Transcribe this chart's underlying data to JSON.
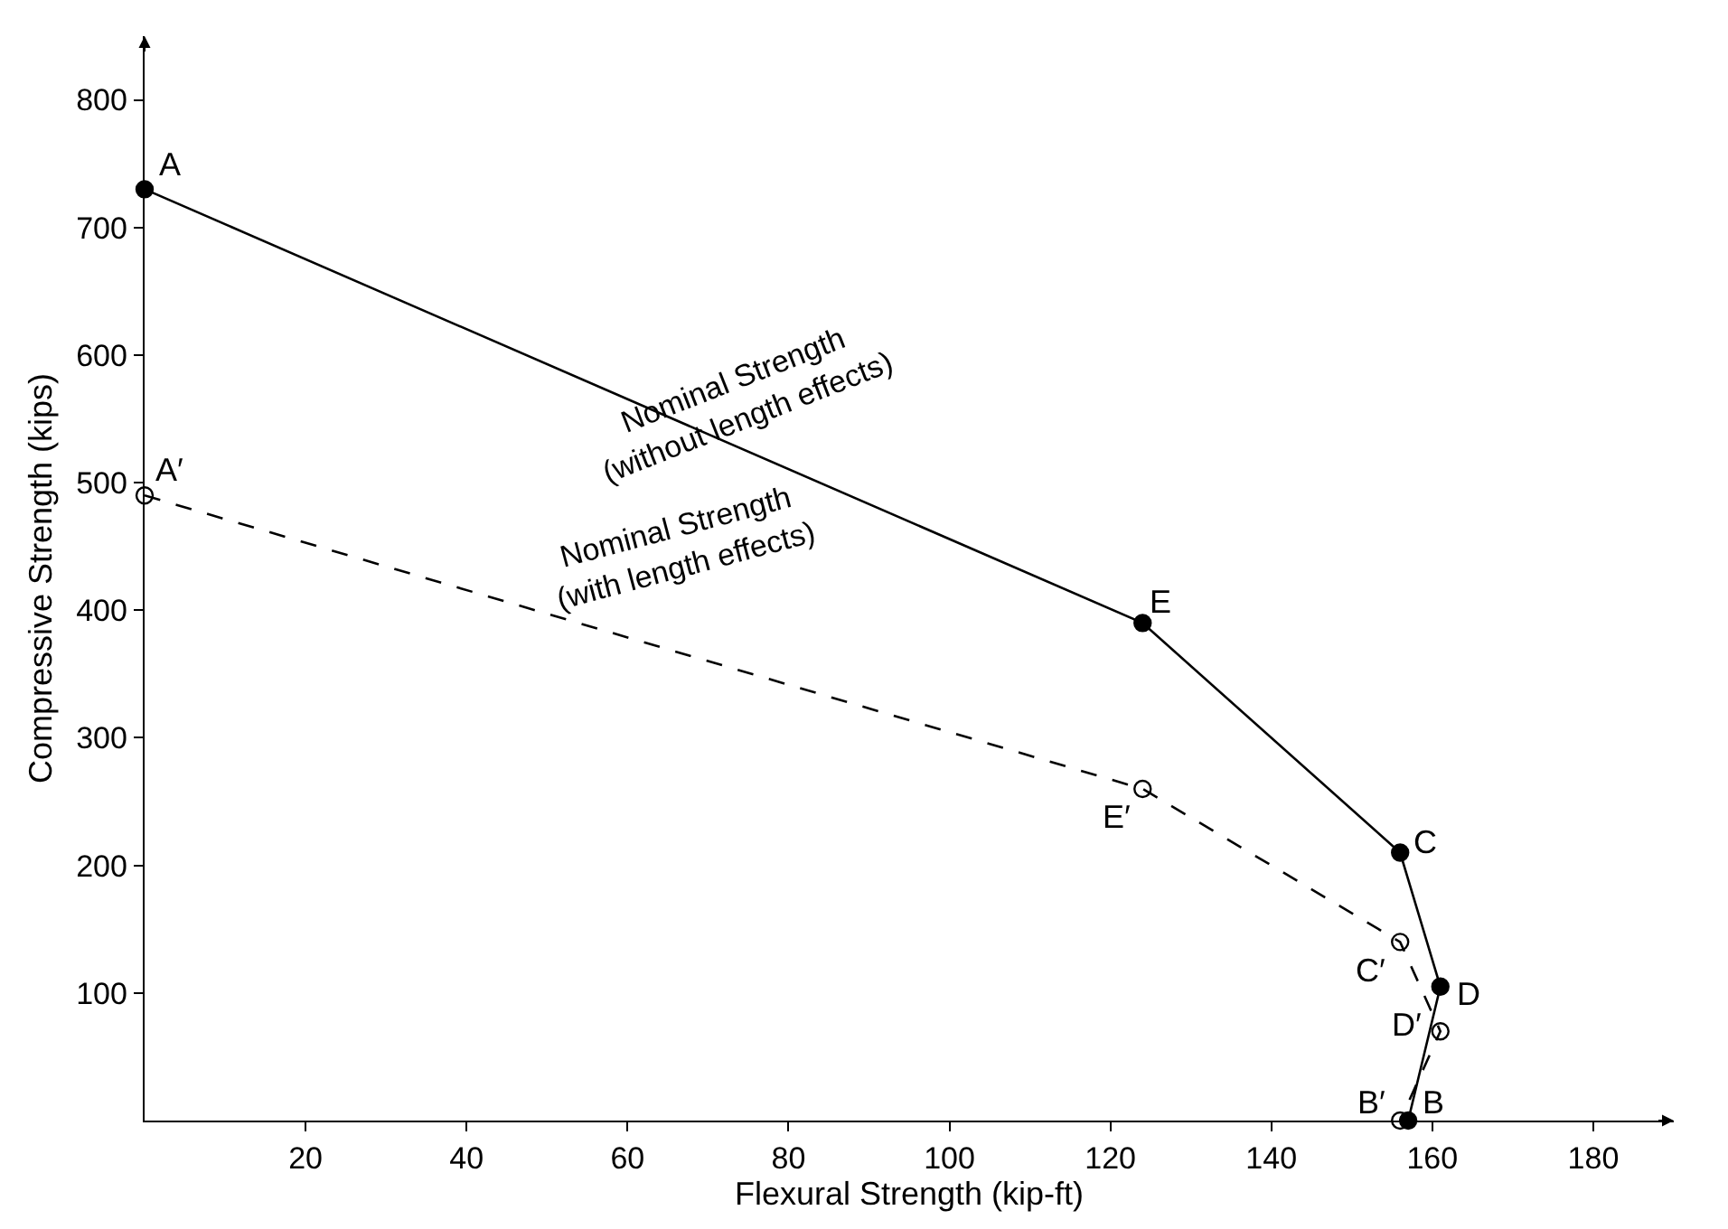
{
  "chart_data": {
    "type": "line",
    "xlabel": "Flexural Strength (kip-ft)",
    "ylabel": "Compressive Strength (kips)",
    "series": [
      {
        "color": "#000000",
        "x": [
          0,
          124,
          156,
          161,
          157
        ],
        "values": [
          730,
          390,
          210,
          105,
          0
        ],
        "line_style": "solid",
        "marker": "circle"
      },
      {
        "color": "#000000",
        "x": [
          0,
          124,
          156,
          161,
          156
        ],
        "values": [
          490,
          260,
          140,
          70,
          0
        ],
        "line_style": "dashed",
        "marker": "circle"
      }
    ],
    "xlim": [
      0,
      190
    ],
    "xticks": [
      20,
      40,
      60,
      80,
      100,
      120,
      140,
      160,
      180
    ],
    "ylim": [
      0,
      850
    ],
    "yticks": [
      100,
      200,
      300,
      400,
      500,
      600,
      700,
      800
    ],
    "annotations": [
      {
        "text": "A",
        "x": 0,
        "y": 730
      },
      {
        "text": "E",
        "x": 124,
        "y": 390
      },
      {
        "text": "C",
        "x": 156,
        "y": 210
      },
      {
        "text": "D",
        "x": 161,
        "y": 105
      },
      {
        "text": "B",
        "x": 157,
        "y": 0
      },
      {
        "text": "A′",
        "x": 0,
        "y": 490
      },
      {
        "text": "E′",
        "x": 124,
        "y": 260
      },
      {
        "text": "C′",
        "x": 156,
        "y": 140
      },
      {
        "text": "D′",
        "x": 161,
        "y": 70
      },
      {
        "text": "B′",
        "x": 156,
        "y": 0
      },
      "Nominal Strength\n(without length effects)",
      "Nominal Strength\n(with length effects)"
    ]
  }
}
